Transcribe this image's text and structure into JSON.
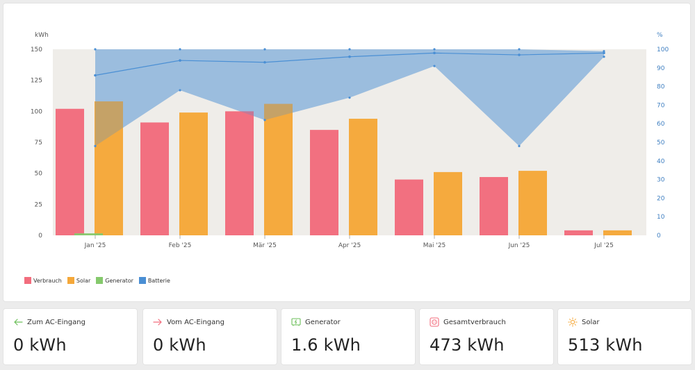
{
  "chart_data": {
    "type": "bar",
    "categories": [
      "Jan '25",
      "Feb '25",
      "Mär '25",
      "Apr '25",
      "Mai '25",
      "Jun '25",
      "Jul '25"
    ],
    "y_left_unit": "kWh",
    "y_right_unit": "%",
    "ylim": [
      0,
      150
    ],
    "y_left_ticks": [
      0,
      25,
      50,
      75,
      100,
      125,
      150
    ],
    "y2lim": [
      0,
      100
    ],
    "y_right_ticks": [
      0,
      10,
      20,
      30,
      40,
      50,
      60,
      70,
      80,
      90,
      100
    ],
    "series": [
      {
        "name": "Verbrauch",
        "type": "bar",
        "color": "#f26d7d",
        "values": [
          102,
          91,
          100,
          85,
          45,
          47,
          4
        ]
      },
      {
        "name": "Solar",
        "type": "bar",
        "color": "#f5a83a",
        "values": [
          108,
          99,
          106,
          94,
          51,
          52,
          4
        ]
      },
      {
        "name": "Generator",
        "type": "bar",
        "color": "#85c96c",
        "values": [
          1.6,
          0,
          0,
          0,
          0,
          0,
          0
        ]
      },
      {
        "name": "Batterie",
        "type": "line",
        "color": "#4a8fd4",
        "axis": "right",
        "values": [
          86,
          94,
          93,
          96,
          98,
          97,
          98
        ],
        "band_max": [
          100,
          100,
          100,
          100,
          100,
          100,
          99
        ],
        "band_min": [
          48,
          78,
          62,
          74,
          91,
          48,
          96
        ]
      }
    ],
    "grid": false,
    "legend_position": "bottom-left"
  },
  "legend": [
    {
      "label": "Verbrauch",
      "color": "#f26d7d"
    },
    {
      "label": "Solar",
      "color": "#f5a83a"
    },
    {
      "label": "Generator",
      "color": "#85c96c"
    },
    {
      "label": "Batterie",
      "color": "#4a8fd4"
    }
  ],
  "cards": [
    {
      "title": "Zum AC-Eingang",
      "value": "0 kWh",
      "icon": "arrow-left-icon",
      "icon_color": "#6bbf59"
    },
    {
      "title": "Vom AC-Eingang",
      "value": "0 kWh",
      "icon": "arrow-right-icon",
      "icon_color": "#f26d7d"
    },
    {
      "title": "Generator",
      "value": "1.6 kWh",
      "icon": "generator-icon",
      "icon_color": "#6bbf59"
    },
    {
      "title": "Gesamtverbrauch",
      "value": "473 kWh",
      "icon": "consumption-icon",
      "icon_color": "#f26d7d"
    },
    {
      "title": "Solar",
      "value": "513 kWh",
      "icon": "sun-icon",
      "icon_color": "#f5a83a"
    }
  ]
}
